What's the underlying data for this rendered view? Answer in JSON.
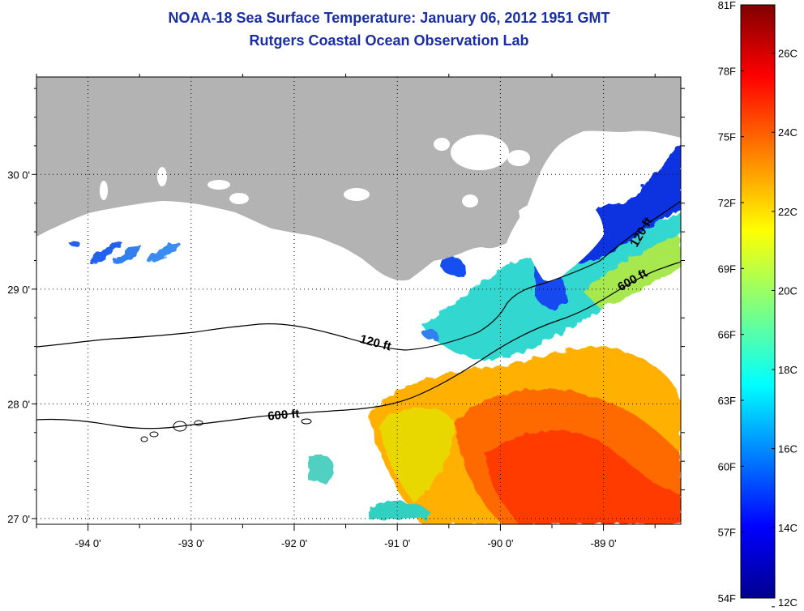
{
  "header": {
    "title_line1": "NOAA-18 Sea Surface Temperature:  January 06, 2012 1951 GMT",
    "title_line2": "Rutgers Coastal Ocean Observation Lab"
  },
  "map": {
    "lon_range": [
      -94.5,
      -88.25
    ],
    "lat_range": [
      26.95,
      30.85
    ],
    "lon_ticks": [
      "-94 0'",
      "-93 0'",
      "-92 0'",
      "-91 0'",
      "-90 0'",
      "-89 0'"
    ],
    "lat_ticks": [
      "30 0'",
      "29 0'",
      "28 0'",
      "27 0'"
    ],
    "isobath_labels": [
      {
        "label": "120 ft",
        "lon": -91.22,
        "lat": 28.5
      },
      {
        "label": "600 ft",
        "lon": -92.1,
        "lat": 27.87
      },
      {
        "label": "120 ft",
        "lon": -88.6,
        "lat": 29.48
      },
      {
        "label": "600 ft",
        "lon": -88.7,
        "lat": 29.05
      }
    ],
    "colors": {
      "land": "#b3b3b3",
      "grid": "#000000",
      "ocean_nodata": "#ffffff"
    }
  },
  "colorbar": {
    "fahrenheit_labels": [
      "81F",
      "78F",
      "75F",
      "72F",
      "69F",
      "66F",
      "63F",
      "60F",
      "57F",
      "54F"
    ],
    "celsius_labels": [
      "26C",
      "24C",
      "22C",
      "20C",
      "18C",
      "16C",
      "14C",
      "12C"
    ],
    "min_f": 54,
    "max_f": 81,
    "colormap": "jet"
  }
}
